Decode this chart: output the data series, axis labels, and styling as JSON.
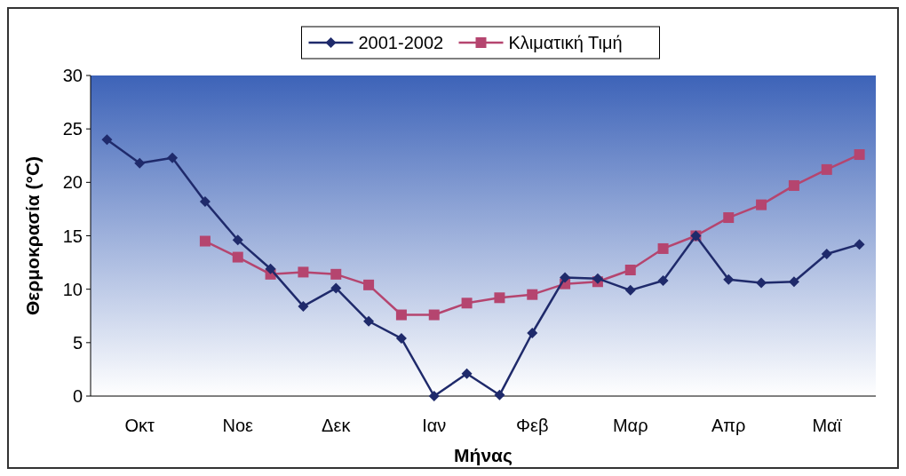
{
  "chart_data": {
    "type": "line",
    "xlabel": "Μήνας",
    "ylabel": "Θερμοκρασία (°C)",
    "categories": [
      null,
      "Οκτ",
      null,
      null,
      "Νοε",
      null,
      null,
      "Δεκ",
      null,
      null,
      "Ιαν",
      null,
      null,
      "Φεβ",
      null,
      null,
      "Μαρ",
      null,
      null,
      "Απρ",
      null,
      null,
      "Μαϊ",
      null
    ],
    "series": [
      {
        "name": "2001-2002",
        "color": "#1f2a6b",
        "marker": "diamond",
        "values": [
          24,
          21.8,
          22.3,
          18.2,
          14.6,
          11.9,
          8.4,
          10.1,
          7.0,
          5.4,
          0,
          2.1,
          0.1,
          5.9,
          11.1,
          11.0,
          9.9,
          10.8,
          15.0,
          10.9,
          10.6,
          10.7,
          13.3,
          14.2
        ]
      },
      {
        "name": "Κλιματική Τιμή",
        "color": "#b5456f",
        "marker": "square",
        "values": [
          null,
          null,
          null,
          14.5,
          13.0,
          11.4,
          11.6,
          11.4,
          10.4,
          7.6,
          7.6,
          8.7,
          9.2,
          9.5,
          10.5,
          10.7,
          11.8,
          13.8,
          15.0,
          16.7,
          17.9,
          19.7,
          21.2,
          22.6
        ]
      }
    ],
    "ylim": [
      0,
      30
    ],
    "yticks": [
      0,
      5,
      10,
      15,
      20,
      25,
      30
    ],
    "grid": false,
    "legend": "top"
  }
}
